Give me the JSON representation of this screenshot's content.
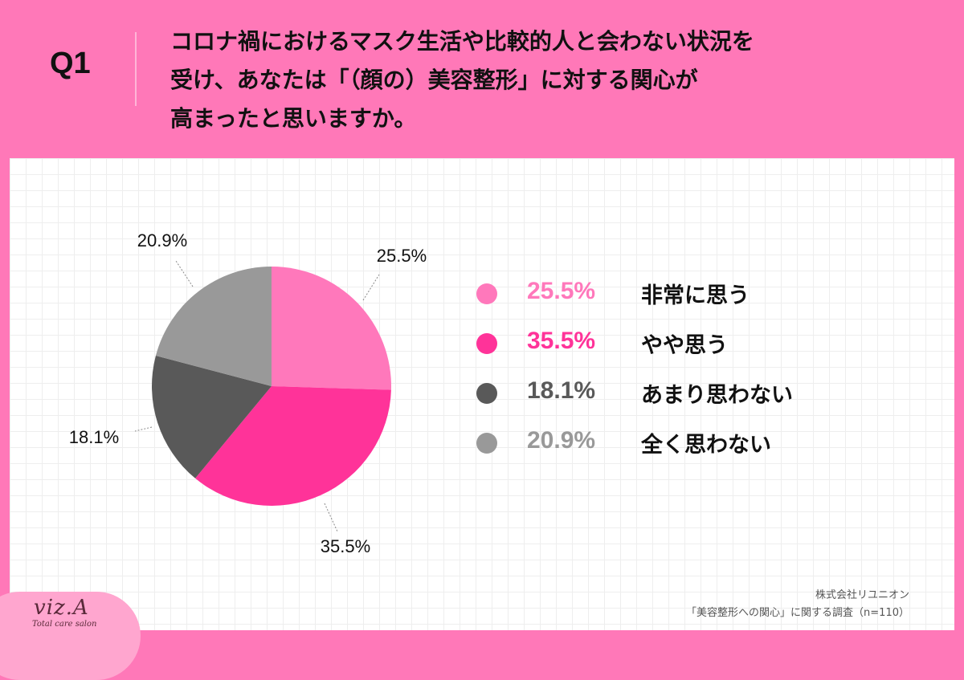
{
  "header": {
    "q_label": "Q1",
    "question_lines": [
      "コロナ禍におけるマスク生活や比較的人と会わない状況を",
      "受け、あなたは「（顔の）美容整形」に対する関心が",
      "高まったと思いますか。"
    ]
  },
  "chart_data": {
    "type": "pie",
    "slices": [
      {
        "label": "非常に思う",
        "value": 25.5,
        "display": "25.5%",
        "color": "#ff78bb"
      },
      {
        "label": "やや思う",
        "value": 35.5,
        "display": "35.5%",
        "color": "#ff3399"
      },
      {
        "label": "あまり思わない",
        "value": 18.1,
        "display": "18.1%",
        "color": "#595959"
      },
      {
        "label": "全く思わない",
        "value": 20.9,
        "display": "20.9%",
        "color": "#999999"
      }
    ],
    "legend_placement": "right"
  },
  "footer": {
    "company": "株式会社リユニオン",
    "survey": "「美容整形への関心」に関する調査（n=110）"
  },
  "logo": {
    "name": "viz.A",
    "tagline": "Total care salon"
  }
}
